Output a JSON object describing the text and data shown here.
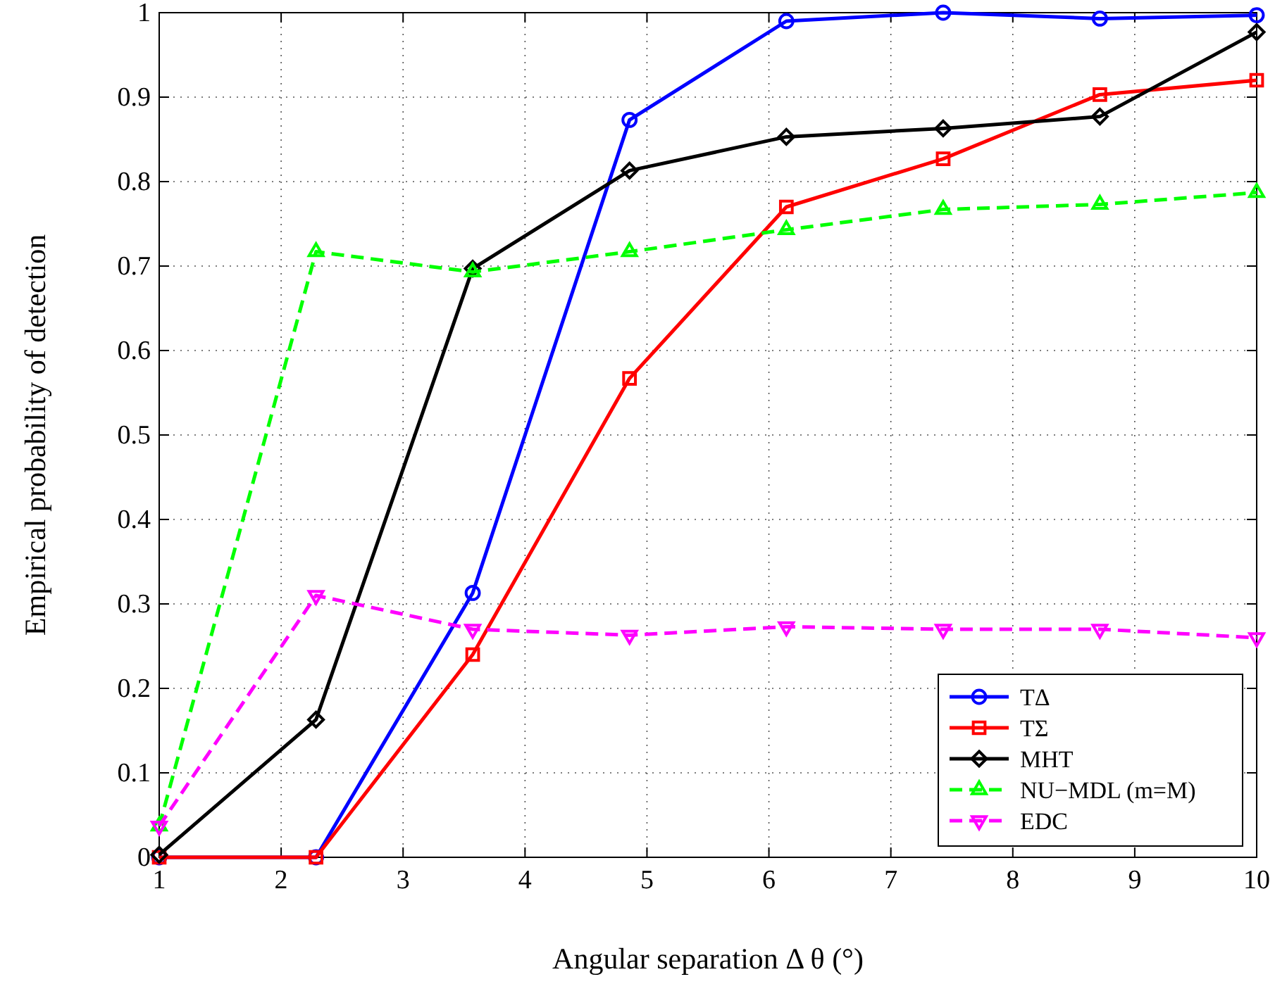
{
  "chart_data": {
    "type": "line",
    "xlabel": "Angular separation Δ θ (°)",
    "ylabel": "Empirical probability of detection",
    "x": [
      1,
      2.286,
      3.571,
      4.857,
      6.143,
      7.429,
      8.714,
      10
    ],
    "xlim": [
      1,
      10
    ],
    "xticks": [
      1,
      2,
      3,
      4,
      5,
      6,
      7,
      8,
      9,
      10
    ],
    "ylim": [
      0,
      1
    ],
    "yticks": [
      0,
      0.1,
      0.2,
      0.3,
      0.4,
      0.5,
      0.6,
      0.7,
      0.8,
      0.9,
      1
    ],
    "grid": true,
    "legend": "bottom right",
    "series": [
      {
        "name": "TΔ",
        "color": "#0000ff",
        "marker": "circle",
        "line_style": "solid",
        "values": [
          0,
          0,
          0.313,
          0.873,
          0.99,
          1.0,
          0.993,
          0.997
        ]
      },
      {
        "name": "TΣ",
        "color": "#ff0000",
        "marker": "square",
        "line_style": "solid",
        "values": [
          0,
          0,
          0.24,
          0.567,
          0.77,
          0.827,
          0.903,
          0.92
        ]
      },
      {
        "name": "MHT",
        "color": "#000000",
        "marker": "diamond",
        "line_style": "solid",
        "values": [
          0.003,
          0.163,
          0.697,
          0.813,
          0.853,
          0.863,
          0.877,
          0.977
        ]
      },
      {
        "name": "NU−MDL (m=M)",
        "color": "#00ff00",
        "marker": "triangle",
        "line_style": "dashed",
        "values": [
          0.037,
          0.717,
          0.693,
          0.717,
          0.743,
          0.767,
          0.773,
          0.787
        ]
      },
      {
        "name": "EDC",
        "color": "#ff00ff",
        "marker": "triangle-down",
        "line_style": "dashed",
        "values": [
          0.037,
          0.31,
          0.27,
          0.263,
          0.273,
          0.27,
          0.27,
          0.26
        ]
      }
    ]
  }
}
